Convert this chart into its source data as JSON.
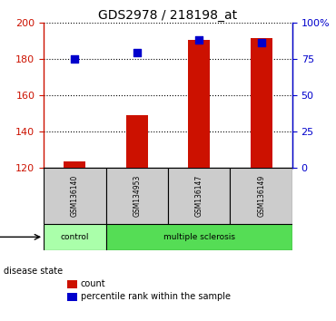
{
  "title": "GDS2978 / 218198_at",
  "samples": [
    "GSM136140",
    "GSM134953",
    "GSM136147",
    "GSM136149"
  ],
  "count_values": [
    123.5,
    149.0,
    190.5,
    191.5
  ],
  "percentile_values": [
    75.0,
    79.0,
    88.0,
    86.0
  ],
  "ylim_left": [
    120,
    200
  ],
  "yticks_left": [
    120,
    140,
    160,
    180,
    200
  ],
  "yticks_right_pct": [
    0,
    25,
    50,
    75,
    100
  ],
  "ytick_labels_right": [
    "0",
    "25",
    "50",
    "75",
    "100%"
  ],
  "bar_color": "#cc1100",
  "dot_color": "#0000cc",
  "disease_states": [
    "control",
    "multiple sclerosis",
    "multiple sclerosis",
    "multiple sclerosis"
  ],
  "disease_label": "disease state",
  "control_color": "#aaffaa",
  "ms_color": "#55dd55",
  "sample_box_color": "#cccccc",
  "legend_count_label": "count",
  "legend_pct_label": "percentile rank within the sample",
  "bar_width": 0.35,
  "dot_size": 40,
  "grid_color": "black",
  "title_fontsize": 10
}
